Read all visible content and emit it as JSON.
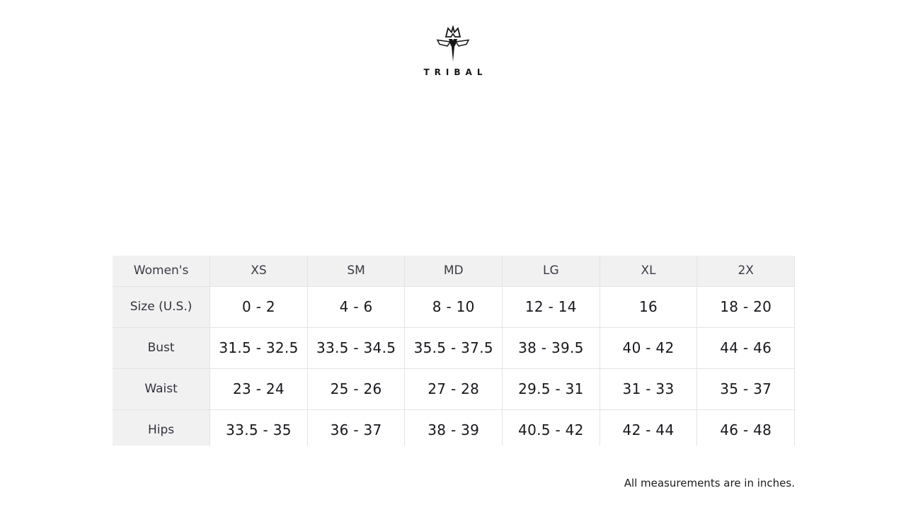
{
  "brand": {
    "name": "TRIBAL",
    "logo_icon": "crown-t-emblem",
    "logo_color": "#161616"
  },
  "size_chart": {
    "columns": [
      "Women's",
      "XS",
      "SM",
      "MD",
      "LG",
      "XL",
      "2X"
    ],
    "rows": [
      {
        "label": "Size (U.S.)",
        "values": [
          "0 - 2",
          "4 - 6",
          "8 - 10",
          "12 - 14",
          "16",
          "18 - 20"
        ]
      },
      {
        "label": "Bust",
        "values": [
          "31.5 - 32.5",
          "33.5 - 34.5",
          "35.5 - 37.5",
          "38 - 39.5",
          "40 - 42",
          "44 - 46"
        ]
      },
      {
        "label": "Waist",
        "values": [
          "23 - 24",
          "25 - 26",
          "27 - 28",
          "29.5 - 31",
          "31 - 33",
          "35 - 37"
        ]
      },
      {
        "label": "Hips",
        "values": [
          "33.5 - 35",
          "36 - 37",
          "38 - 39",
          "40.5 - 42",
          "42 - 44",
          "46 - 48"
        ]
      }
    ],
    "header_background": "#f1f1f2",
    "border_color": "#e4e4e6"
  },
  "footer": {
    "note": "All measurements are in inches."
  }
}
